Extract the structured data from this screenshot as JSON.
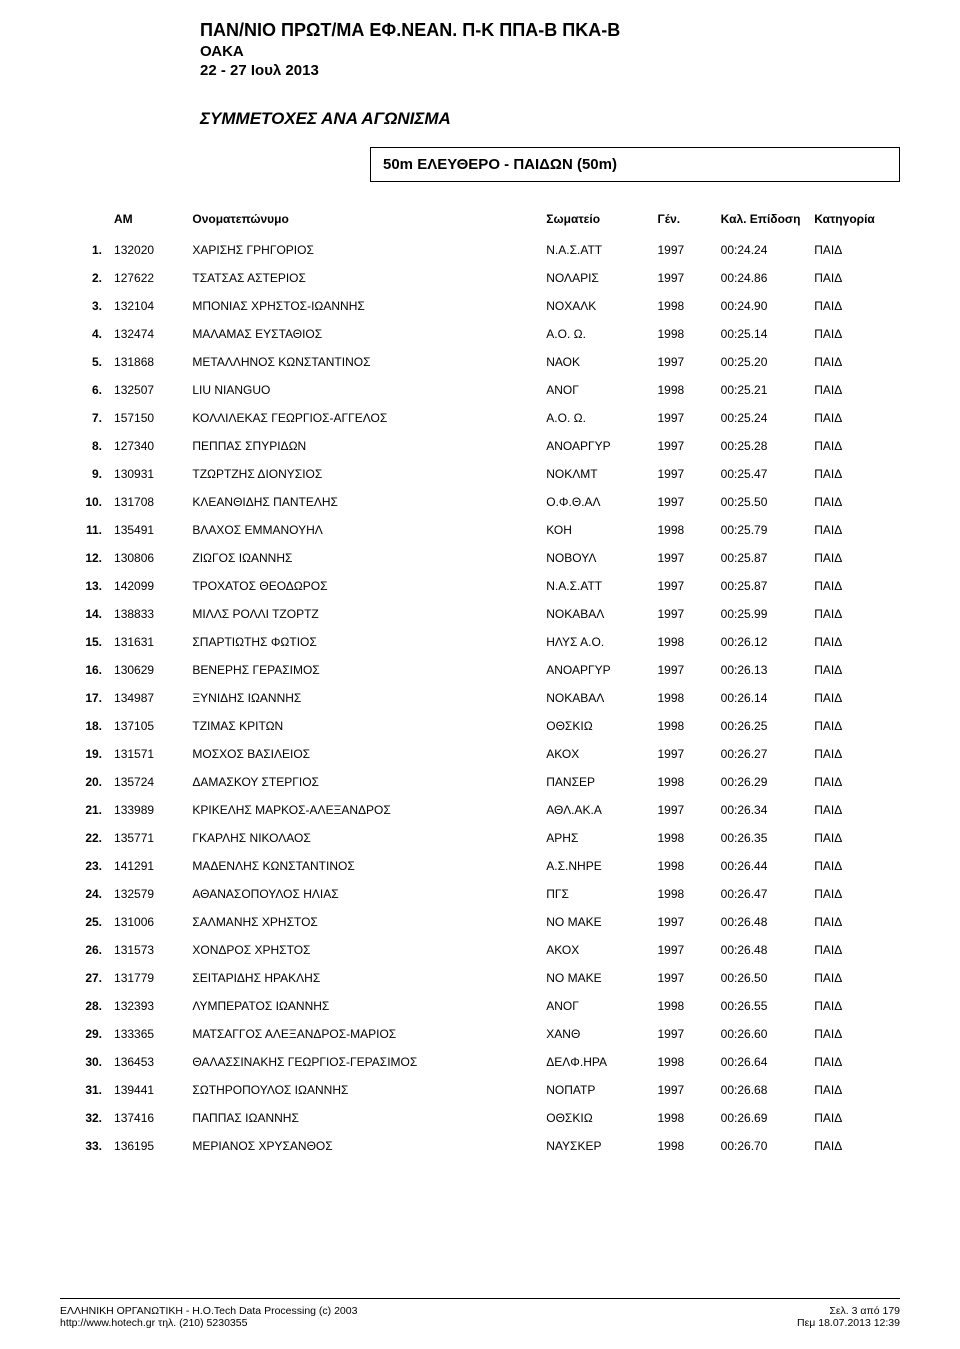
{
  "header": {
    "line1": "ΠΑΝ/ΝΙΟ ΠΡΩΤ/ΜΑ ΕΦ.ΝΕΑΝ. Π-Κ ΠΠΑ-Β ΠΚΑ-Β",
    "line2": "ΟΑΚΑ",
    "line3": "22 - 27 Ιουλ 2013"
  },
  "section_title": "ΣΥΜΜΕΤΟΧΕΣ ΑΝΑ ΑΓΩΝΙΣΜΑ",
  "event_box": "50m ΕΛΕΥΘΕΡΟ - ΠΑΙΔΩΝ   (50m)",
  "columns": {
    "am": "ΑΜ",
    "name": "Ονοματεπώνυμο",
    "club": "Σωματείο",
    "year": "Γέν.",
    "time": "Καλ. Επίδοση",
    "cat": "Κατηγορία"
  },
  "rows": [
    {
      "rank": "1.",
      "am": "132020",
      "name": "ΧΑΡΙΣΗΣ ΓΡΗΓΟΡΙΟΣ",
      "club": "Ν.Α.Σ.ΑΤΤ",
      "year": "1997",
      "time": "00:24.24",
      "cat": "ΠΑΙΔ"
    },
    {
      "rank": "2.",
      "am": "127622",
      "name": "ΤΣΑΤΣΑΣ ΑΣΤΕΡΙΟΣ",
      "club": "ΝΟΛΑΡΙΣ",
      "year": "1997",
      "time": "00:24.86",
      "cat": "ΠΑΙΔ"
    },
    {
      "rank": "3.",
      "am": "132104",
      "name": "ΜΠΟΝΙΑΣ ΧΡΗΣΤΟΣ-ΙΩΑΝΝΗΣ",
      "club": "ΝΟΧΑΛΚ",
      "year": "1998",
      "time": "00:24.90",
      "cat": "ΠΑΙΔ"
    },
    {
      "rank": "4.",
      "am": "132474",
      "name": "ΜΑΛΑΜΑΣ ΕΥΣΤΑΘΙΟΣ",
      "club": "Α.Ο. Ω.",
      "year": "1998",
      "time": "00:25.14",
      "cat": "ΠΑΙΔ"
    },
    {
      "rank": "5.",
      "am": "131868",
      "name": "ΜΕΤΑΛΛΗΝΟΣ ΚΩΝΣΤΑΝΤΙΝΟΣ",
      "club": "ΝΑΟΚ",
      "year": "1997",
      "time": "00:25.20",
      "cat": "ΠΑΙΔ"
    },
    {
      "rank": "6.",
      "am": "132507",
      "name": "LIU NIANGUO",
      "club": "ΑΝΟΓ",
      "year": "1998",
      "time": "00:25.21",
      "cat": "ΠΑΙΔ"
    },
    {
      "rank": "7.",
      "am": "157150",
      "name": "ΚΟΛΛΙΛΕΚΑΣ ΓΕΩΡΓΙΟΣ-ΑΓΓΕΛΟΣ",
      "club": "Α.Ο. Ω.",
      "year": "1997",
      "time": "00:25.24",
      "cat": "ΠΑΙΔ"
    },
    {
      "rank": "8.",
      "am": "127340",
      "name": "ΠΕΠΠΑΣ ΣΠΥΡΙΔΩΝ",
      "club": "ΑΝΟΑΡΓΥΡ",
      "year": "1997",
      "time": "00:25.28",
      "cat": "ΠΑΙΔ"
    },
    {
      "rank": "9.",
      "am": "130931",
      "name": "ΤΖΩΡΤΖΗΣ ΔΙΟΝΥΣΙΟΣ",
      "club": "ΝΟΚΛΜΤ",
      "year": "1997",
      "time": "00:25.47",
      "cat": "ΠΑΙΔ"
    },
    {
      "rank": "10.",
      "am": "131708",
      "name": "ΚΛΕΑΝΘΙΔΗΣ ΠΑΝΤΕΛΗΣ",
      "club": "Ο.Φ.Θ.ΑΛ",
      "year": "1997",
      "time": "00:25.50",
      "cat": "ΠΑΙΔ"
    },
    {
      "rank": "11.",
      "am": "135491",
      "name": "ΒΛΑΧΟΣ ΕΜΜΑΝΟΥΗΛ",
      "club": "ΚΟΗ",
      "year": "1998",
      "time": "00:25.79",
      "cat": "ΠΑΙΔ"
    },
    {
      "rank": "12.",
      "am": "130806",
      "name": "ΖΙΩΓΟΣ ΙΩΑΝΝΗΣ",
      "club": "ΝΟΒΟΥΛ",
      "year": "1997",
      "time": "00:25.87",
      "cat": "ΠΑΙΔ"
    },
    {
      "rank": "13.",
      "am": "142099",
      "name": "ΤΡΟΧΑΤΟΣ ΘΕΟΔΩΡΟΣ",
      "club": "Ν.Α.Σ.ΑΤΤ",
      "year": "1997",
      "time": "00:25.87",
      "cat": "ΠΑΙΔ"
    },
    {
      "rank": "14.",
      "am": "138833",
      "name": "ΜΙΛΛΣ ΡΟΛΛΙ ΤΖΟΡΤΖ",
      "club": "ΝΟΚΑΒΑΛ",
      "year": "1997",
      "time": "00:25.99",
      "cat": "ΠΑΙΔ"
    },
    {
      "rank": "15.",
      "am": "131631",
      "name": "ΣΠΑΡΤΙΩΤΗΣ ΦΩΤΙΟΣ",
      "club": "ΗΛΥΣ Α.Ο.",
      "year": "1998",
      "time": "00:26.12",
      "cat": "ΠΑΙΔ"
    },
    {
      "rank": "16.",
      "am": "130629",
      "name": "ΒΕΝΕΡΗΣ ΓΕΡΑΣΙΜΟΣ",
      "club": "ΑΝΟΑΡΓΥΡ",
      "year": "1997",
      "time": "00:26.13",
      "cat": "ΠΑΙΔ"
    },
    {
      "rank": "17.",
      "am": "134987",
      "name": "ΞΥΝΙΔΗΣ ΙΩΑΝΝΗΣ",
      "club": "ΝΟΚΑΒΑΛ",
      "year": "1998",
      "time": "00:26.14",
      "cat": "ΠΑΙΔ"
    },
    {
      "rank": "18.",
      "am": "137105",
      "name": "ΤΖΙΜΑΣ ΚΡΙΤΩΝ",
      "club": "ΟΘΣΚΙΩ",
      "year": "1998",
      "time": "00:26.25",
      "cat": "ΠΑΙΔ"
    },
    {
      "rank": "19.",
      "am": "131571",
      "name": "ΜΟΣΧΟΣ ΒΑΣΙΛΕΙΟΣ",
      "club": "ΑΚΟΧ",
      "year": "1997",
      "time": "00:26.27",
      "cat": "ΠΑΙΔ"
    },
    {
      "rank": "20.",
      "am": "135724",
      "name": "ΔΑΜΑΣΚΟΥ ΣΤΕΡΓΙΟΣ",
      "club": "ΠΑΝΣΕΡ",
      "year": "1998",
      "time": "00:26.29",
      "cat": "ΠΑΙΔ"
    },
    {
      "rank": "21.",
      "am": "133989",
      "name": "ΚΡΙΚΕΛΗΣ ΜΑΡΚΟΣ-ΑΛΕΞΑΝΔΡΟΣ",
      "club": "ΑΘΛ.ΑΚ.Α",
      "year": "1997",
      "time": "00:26.34",
      "cat": "ΠΑΙΔ"
    },
    {
      "rank": "22.",
      "am": "135771",
      "name": "ΓΚΑΡΛΗΣ ΝΙΚΟΛΑΟΣ",
      "club": "ΑΡΗΣ",
      "year": "1998",
      "time": "00:26.35",
      "cat": "ΠΑΙΔ"
    },
    {
      "rank": "23.",
      "am": "141291",
      "name": "ΜΑΔΕΝΛΗΣ ΚΩΝΣΤΑΝΤΙΝΟΣ",
      "club": "Α.Σ.ΝΗΡΕ",
      "year": "1998",
      "time": "00:26.44",
      "cat": "ΠΑΙΔ"
    },
    {
      "rank": "24.",
      "am": "132579",
      "name": "ΑΘΑΝΑΣΟΠΟΥΛΟΣ ΗΛΙΑΣ",
      "club": "ΠΓΣ",
      "year": "1998",
      "time": "00:26.47",
      "cat": "ΠΑΙΔ"
    },
    {
      "rank": "25.",
      "am": "131006",
      "name": "ΣΑΛΜΑΝΗΣ ΧΡΗΣΤΟΣ",
      "club": "ΝΟ ΜΑΚΕ",
      "year": "1997",
      "time": "00:26.48",
      "cat": "ΠΑΙΔ"
    },
    {
      "rank": "26.",
      "am": "131573",
      "name": "ΧΟΝΔΡΟΣ ΧΡΗΣΤΟΣ",
      "club": "ΑΚΟΧ",
      "year": "1997",
      "time": "00:26.48",
      "cat": "ΠΑΙΔ"
    },
    {
      "rank": "27.",
      "am": "131779",
      "name": "ΣΕΙΤΑΡΙΔΗΣ ΗΡΑΚΛΗΣ",
      "club": "ΝΟ ΜΑΚΕ",
      "year": "1997",
      "time": "00:26.50",
      "cat": "ΠΑΙΔ"
    },
    {
      "rank": "28.",
      "am": "132393",
      "name": "ΛΥΜΠΕΡΑΤΟΣ ΙΩΑΝΝΗΣ",
      "club": "ΑΝΟΓ",
      "year": "1998",
      "time": "00:26.55",
      "cat": "ΠΑΙΔ"
    },
    {
      "rank": "29.",
      "am": "133365",
      "name": "ΜΑΤΣΑΓΓΟΣ ΑΛΕΞΑΝΔΡΟΣ-ΜΑΡΙΟΣ",
      "club": "ΧΑΝΘ",
      "year": "1997",
      "time": "00:26.60",
      "cat": "ΠΑΙΔ"
    },
    {
      "rank": "30.",
      "am": "136453",
      "name": "ΘΑΛΑΣΣΙΝΑΚΗΣ ΓΕΩΡΓΙΟΣ-ΓΕΡΑΣΙΜΟΣ",
      "club": "ΔΕΛΦ.ΗΡΑ",
      "year": "1998",
      "time": "00:26.64",
      "cat": "ΠΑΙΔ"
    },
    {
      "rank": "31.",
      "am": "139441",
      "name": "ΣΩΤΗΡΟΠΟΥΛΟΣ ΙΩΑΝΝΗΣ",
      "club": "ΝΟΠΑΤΡ",
      "year": "1997",
      "time": "00:26.68",
      "cat": "ΠΑΙΔ"
    },
    {
      "rank": "32.",
      "am": "137416",
      "name": "ΠΑΠΠΑΣ ΙΩΑΝΝΗΣ",
      "club": "ΟΘΣΚΙΩ",
      "year": "1998",
      "time": "00:26.69",
      "cat": "ΠΑΙΔ"
    },
    {
      "rank": "33.",
      "am": "136195",
      "name": "ΜΕΡΙΑΝΟΣ ΧΡΥΣΑΝΘΟΣ",
      "club": "ΝΑΥΣΚΕΡ",
      "year": "1998",
      "time": "00:26.70",
      "cat": "ΠΑΙΔ"
    }
  ],
  "footer": {
    "left1": "ΕΛΛΗΝΙΚΗ ΟΡΓΑΝΩΤΙΚΗ - H.O.Tech  Data Processing (c) 2003",
    "left2": "http://www.hotech.gr    τηλ. (210) 5230355",
    "right1": "Σελ. 3 από 179",
    "right2": "Πεμ 18.07.2013  12:39"
  }
}
